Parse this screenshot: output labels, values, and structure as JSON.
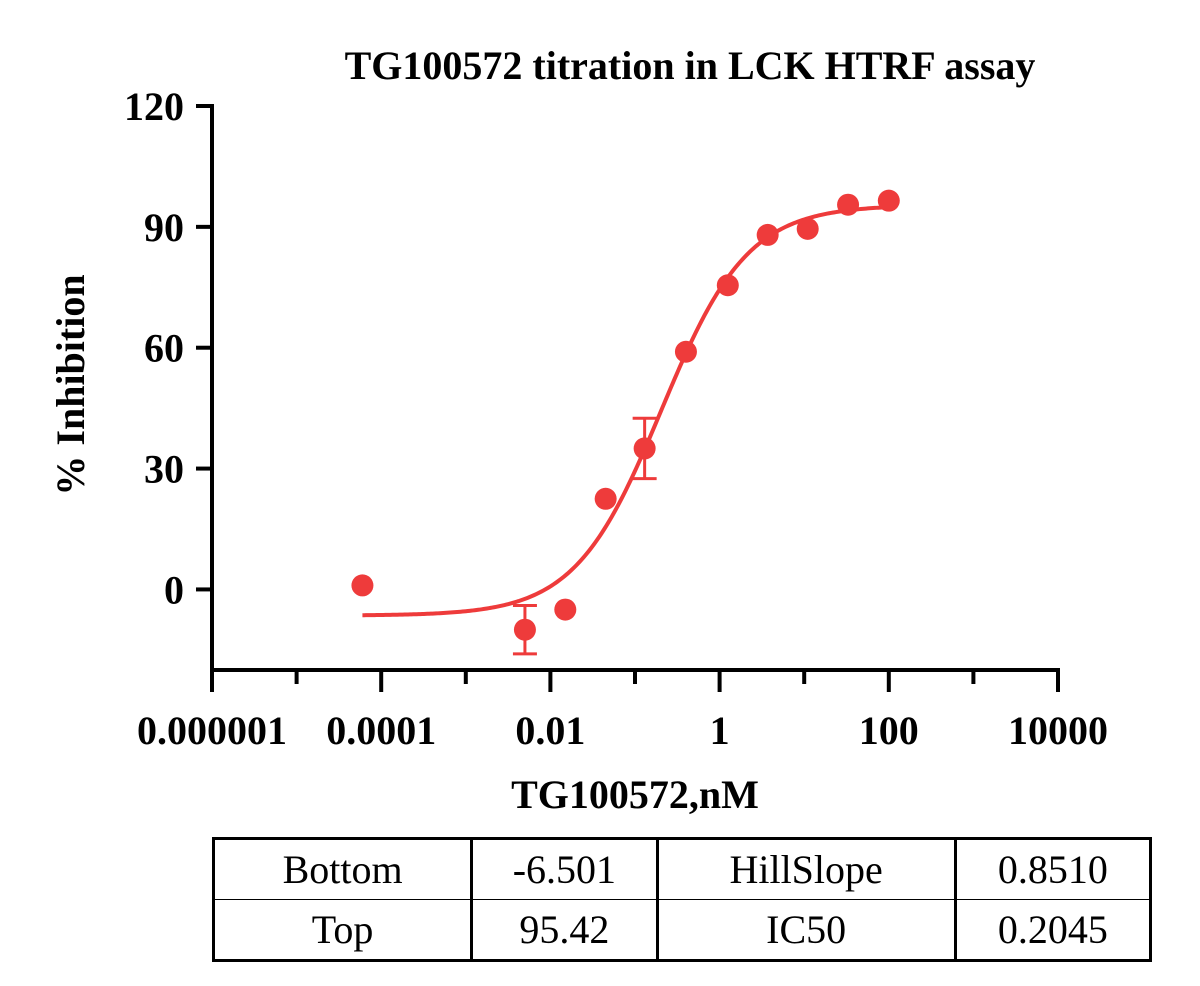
{
  "chart_data": {
    "type": "scatter",
    "title": "TG100572 titration in LCK HTRF assay",
    "xlabel": "TG100572,nM",
    "ylabel": "% Inhibition",
    "x_scale": "log",
    "xlim": [
      1e-06,
      10000
    ],
    "ylim": [
      -20,
      120
    ],
    "x_ticks": [
      1e-06,
      0.0001,
      0.01,
      1,
      100,
      10000
    ],
    "x_tick_labels": [
      "0.000001",
      "0.0001",
      "0.01",
      "1",
      "100",
      "10000"
    ],
    "y_ticks": [
      0,
      30,
      60,
      90,
      120
    ],
    "y_tick_labels": [
      "0",
      "30",
      "60",
      "90",
      "120"
    ],
    "grid": false,
    "series": [
      {
        "color": "#ee3b3b",
        "points": [
          {
            "x": 6e-05,
            "y": 1
          },
          {
            "x": 0.005,
            "y": -10,
            "err": 6
          },
          {
            "x": 0.015,
            "y": -5
          },
          {
            "x": 0.045,
            "y": 22.5
          },
          {
            "x": 0.13,
            "y": 35,
            "err": 7.5
          },
          {
            "x": 0.4,
            "y": 59
          },
          {
            "x": 1.25,
            "y": 75.5
          },
          {
            "x": 3.7,
            "y": 88
          },
          {
            "x": 11,
            "y": 89.5
          },
          {
            "x": 33,
            "y": 95.5
          },
          {
            "x": 100,
            "y": 96.5
          }
        ],
        "fit": {
          "model": "four-parameter logistic",
          "bottom": -6.501,
          "top": 95.42,
          "hillslope": 0.851,
          "ic50": 0.2045,
          "x_range": [
            6e-05,
            100
          ]
        }
      }
    ]
  },
  "fit_table": {
    "rows": [
      [
        "Bottom",
        "-6.501",
        "HillSlope",
        "0.8510"
      ],
      [
        "Top",
        "95.42",
        "IC50",
        "0.2045"
      ]
    ]
  }
}
